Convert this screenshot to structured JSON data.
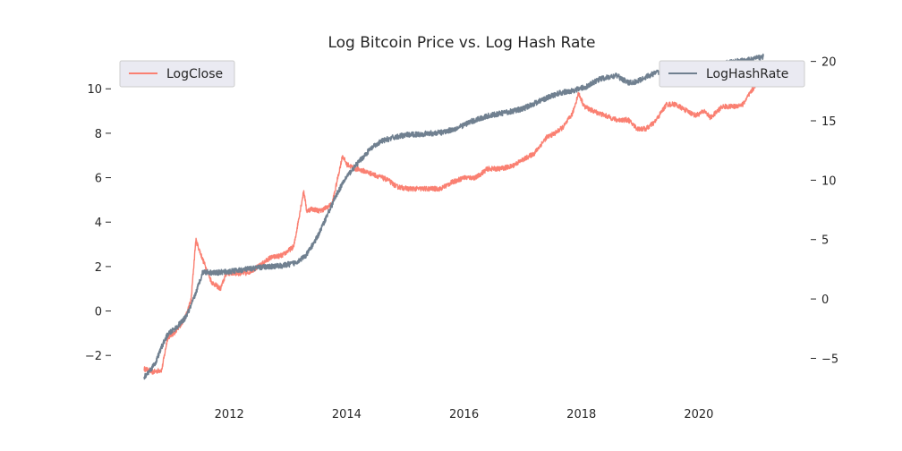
{
  "chart_data": {
    "type": "line",
    "title": "Log Bitcoin Price vs. Log Hash Rate",
    "xlabel": "",
    "ylabel_left": "",
    "ylabel_right": "",
    "x_tick_labels": [
      "2012",
      "2014",
      "2016",
      "2018",
      "2020"
    ],
    "y_left_ticks": [
      -2,
      0,
      2,
      4,
      6,
      8,
      10
    ],
    "y_left_tick_labels": [
      "−2",
      "0",
      "2",
      "4",
      "6",
      "8",
      "10"
    ],
    "y_right_ticks": [
      -5,
      0,
      5,
      10,
      15,
      20
    ],
    "y_right_tick_labels": [
      "−5",
      "0",
      "5",
      "10",
      "15",
      "20"
    ],
    "xlim": [
      2010.35,
      2021.45
    ],
    "ylim_left": [
      -3.2,
      11.5
    ],
    "ylim_right": [
      -7.0,
      20.5
    ],
    "grid": false,
    "series": [
      {
        "name": "LogClose",
        "axis": "left",
        "color": "#fa8072",
        "legend_position": "top-left",
        "x": [
          2010.55,
          2010.7,
          2010.85,
          2010.95,
          2011.1,
          2011.25,
          2011.35,
          2011.43,
          2011.55,
          2011.7,
          2011.85,
          2011.95,
          2012.1,
          2012.3,
          2012.5,
          2012.7,
          2012.9,
          2013.1,
          2013.22,
          2013.27,
          2013.32,
          2013.4,
          2013.55,
          2013.75,
          2013.85,
          2013.93,
          2014.0,
          2014.15,
          2014.3,
          2014.5,
          2014.7,
          2014.85,
          2015.05,
          2015.2,
          2015.4,
          2015.6,
          2015.8,
          2016.0,
          2016.2,
          2016.4,
          2016.6,
          2016.8,
          2017.0,
          2017.2,
          2017.4,
          2017.55,
          2017.7,
          2017.85,
          2017.95,
          2018.05,
          2018.2,
          2018.4,
          2018.6,
          2018.8,
          2018.95,
          2019.1,
          2019.25,
          2019.45,
          2019.6,
          2019.8,
          2019.95,
          2020.1,
          2020.2,
          2020.4,
          2020.6,
          2020.75,
          2020.85,
          2020.95,
          2021.05,
          2021.1
        ],
        "y": [
          -2.6,
          -2.75,
          -2.65,
          -1.2,
          -0.9,
          -0.3,
          0.5,
          3.2,
          2.3,
          1.3,
          1.0,
          1.7,
          1.7,
          1.7,
          2.0,
          2.4,
          2.5,
          2.9,
          4.7,
          5.4,
          4.5,
          4.6,
          4.5,
          4.8,
          6.0,
          7.0,
          6.6,
          6.4,
          6.3,
          6.1,
          5.9,
          5.6,
          5.5,
          5.5,
          5.5,
          5.5,
          5.8,
          6.0,
          6.0,
          6.4,
          6.4,
          6.5,
          6.8,
          7.1,
          7.8,
          8.0,
          8.3,
          8.9,
          9.8,
          9.2,
          9.0,
          8.8,
          8.6,
          8.6,
          8.2,
          8.2,
          8.5,
          9.3,
          9.3,
          9.0,
          8.8,
          9.0,
          8.7,
          9.2,
          9.2,
          9.3,
          9.7,
          10.1,
          10.5,
          10.6
        ]
      },
      {
        "name": "LogHashRate",
        "axis": "right",
        "color": "#708090",
        "legend_position": "top-right",
        "x": [
          2010.55,
          2010.65,
          2010.75,
          2010.85,
          2010.95,
          2011.1,
          2011.25,
          2011.35,
          2011.45,
          2011.55,
          2011.75,
          2012.0,
          2012.3,
          2012.6,
          2012.9,
          2013.1,
          2013.3,
          2013.5,
          2013.7,
          2013.85,
          2014.0,
          2014.2,
          2014.4,
          2014.6,
          2014.8,
          2015.0,
          2015.3,
          2015.6,
          2015.9,
          2016.1,
          2016.4,
          2016.7,
          2017.0,
          2017.3,
          2017.6,
          2017.9,
          2018.1,
          2018.3,
          2018.6,
          2018.8,
          2018.95,
          2019.1,
          2019.3,
          2019.6,
          2019.9,
          2020.2,
          2020.5,
          2020.8,
          2021.1
        ],
        "y": [
          -6.6,
          -6.0,
          -5.3,
          -4.0,
          -3.0,
          -2.4,
          -1.6,
          -0.6,
          0.8,
          2.3,
          2.2,
          2.3,
          2.5,
          2.7,
          2.8,
          3.0,
          3.6,
          5.2,
          7.4,
          9.0,
          10.3,
          11.5,
          12.6,
          13.3,
          13.6,
          13.8,
          13.9,
          14.0,
          14.4,
          14.9,
          15.4,
          15.7,
          16.0,
          16.7,
          17.3,
          17.6,
          17.9,
          18.5,
          18.8,
          18.2,
          18.3,
          18.7,
          19.1,
          19.6,
          19.8,
          19.5,
          19.9,
          20.1,
          20.4
        ]
      }
    ]
  }
}
